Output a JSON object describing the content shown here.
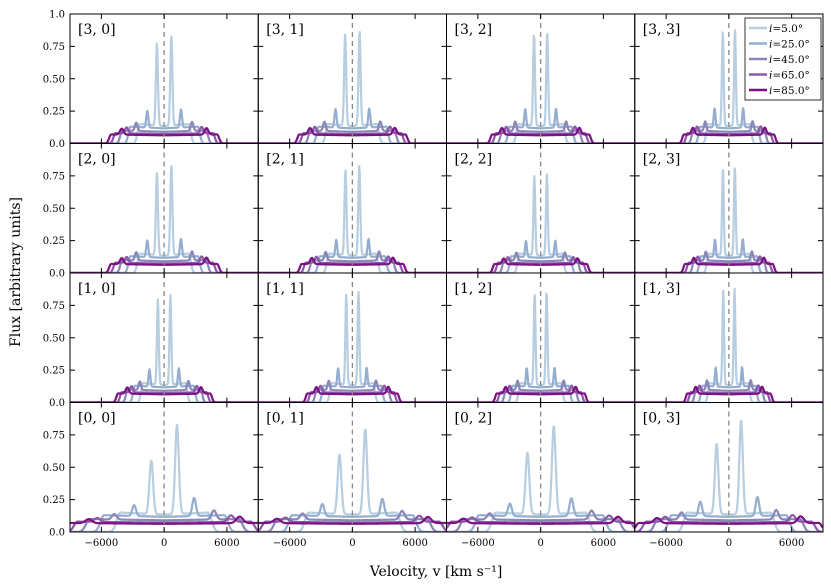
{
  "chart_data": {
    "type": "line",
    "layout": {
      "rows": 4,
      "cols": 4,
      "shared_x": true,
      "shared_y": true
    },
    "xlabel": "Velocity, v [km s⁻¹]",
    "ylabel": "Flux [arbitrary units]",
    "xlim": [
      -9000,
      9000
    ],
    "ylim": [
      0,
      1.0
    ],
    "xticks": [
      -6000,
      0,
      6000
    ],
    "xtick_labels": [
      "−6000",
      "0",
      "6000"
    ],
    "yticks": [
      0,
      0.25,
      0.5,
      0.75,
      1.0
    ],
    "ytick_labels": [
      "0.0",
      "0.25",
      "0.50",
      "0.75",
      "1.0"
    ],
    "reference_line": {
      "x": 0,
      "style": "dashed",
      "color": "#888888"
    },
    "legend": {
      "placement": "top-right of panel [3, 3]"
    },
    "series": [
      {
        "name": "i=5.0°",
        "color": "#b7cde0",
        "core_half_width": 0.15,
        "peak_height": 0.84,
        "plateau": 0.15,
        "wing_half_width": 0.36
      },
      {
        "name": "i=25.0°",
        "color": "#94aed0",
        "core_half_width": 0.35,
        "peak_height": 0.27,
        "plateau": 0.13,
        "wing_half_width": 0.55
      },
      {
        "name": "i=45.0°",
        "color": "#8b86b8",
        "core_half_width": 0.58,
        "peak_height": 0.17,
        "plateau": 0.1,
        "wing_half_width": 0.72
      },
      {
        "name": "i=65.0°",
        "color": "#8c58a8",
        "core_half_width": 0.78,
        "peak_height": 0.13,
        "plateau": 0.08,
        "wing_half_width": 0.86
      },
      {
        "name": "i=85.0°",
        "color": "#7b1182",
        "core_half_width": 0.88,
        "peak_height": 0.12,
        "plateau": 0.07,
        "wing_half_width": 0.95
      }
    ],
    "panels": [
      {
        "label": "[3, 0]",
        "row": 0,
        "col": 0,
        "width_scale": 4600,
        "center_shift": 0,
        "peak_scale": 1.0,
        "low_dip": 0.92
      },
      {
        "label": "[3, 1]",
        "row": 0,
        "col": 1,
        "width_scale": 4600,
        "center_shift": 0,
        "peak_scale": 1.05,
        "low_dip": 0.97
      },
      {
        "label": "[3, 2]",
        "row": 0,
        "col": 2,
        "width_scale": 4200,
        "center_shift": 0,
        "peak_scale": 1.05,
        "low_dip": 0.98
      },
      {
        "label": "[3, 3]",
        "row": 0,
        "col": 3,
        "width_scale": 3900,
        "center_shift": 0,
        "peak_scale": 1.08,
        "low_dip": 0.98
      },
      {
        "label": "[2, 0]",
        "row": 1,
        "col": 0,
        "width_scale": 4600,
        "center_shift": 0,
        "peak_scale": 1.0,
        "low_dip": 0.92
      },
      {
        "label": "[2, 1]",
        "row": 1,
        "col": 1,
        "width_scale": 4400,
        "center_shift": 0,
        "peak_scale": 1.0,
        "low_dip": 0.95
      },
      {
        "label": "[2, 2]",
        "row": 1,
        "col": 2,
        "width_scale": 4000,
        "center_shift": 0,
        "peak_scale": 0.9,
        "low_dip": 0.98
      },
      {
        "label": "[2, 3]",
        "row": 1,
        "col": 3,
        "width_scale": 3800,
        "center_shift": 0,
        "peak_scale": 1.0,
        "low_dip": 0.98
      },
      {
        "label": "[1, 0]",
        "row": 2,
        "col": 0,
        "width_scale": 4000,
        "center_shift": 0,
        "peak_scale": 1.0,
        "low_dip": 0.95
      },
      {
        "label": "[1, 1]",
        "row": 2,
        "col": 1,
        "width_scale": 3900,
        "center_shift": 0,
        "peak_scale": 1.05,
        "low_dip": 0.97
      },
      {
        "label": "[1, 2]",
        "row": 2,
        "col": 2,
        "width_scale": 3800,
        "center_shift": 0,
        "peak_scale": 1.05,
        "low_dip": 0.98
      },
      {
        "label": "[1, 3]",
        "row": 2,
        "col": 3,
        "width_scale": 3600,
        "center_shift": 0,
        "peak_scale": 1.08,
        "low_dip": 0.98
      },
      {
        "label": "[0, 0]",
        "row": 3,
        "col": 0,
        "width_scale": 8200,
        "center_shift": 0,
        "peak_scale": 1.0,
        "low_dip": 0.6
      },
      {
        "label": "[0, 1]",
        "row": 3,
        "col": 1,
        "width_scale": 8200,
        "center_shift": 0,
        "peak_scale": 0.95,
        "low_dip": 0.7
      },
      {
        "label": "[0, 2]",
        "row": 3,
        "col": 2,
        "width_scale": 8400,
        "center_shift": 0,
        "peak_scale": 0.98,
        "low_dip": 0.7
      },
      {
        "label": "[0, 3]",
        "row": 3,
        "col": 3,
        "width_scale": 7800,
        "center_shift": 0,
        "peak_scale": 1.05,
        "low_dip": 0.75
      }
    ]
  }
}
